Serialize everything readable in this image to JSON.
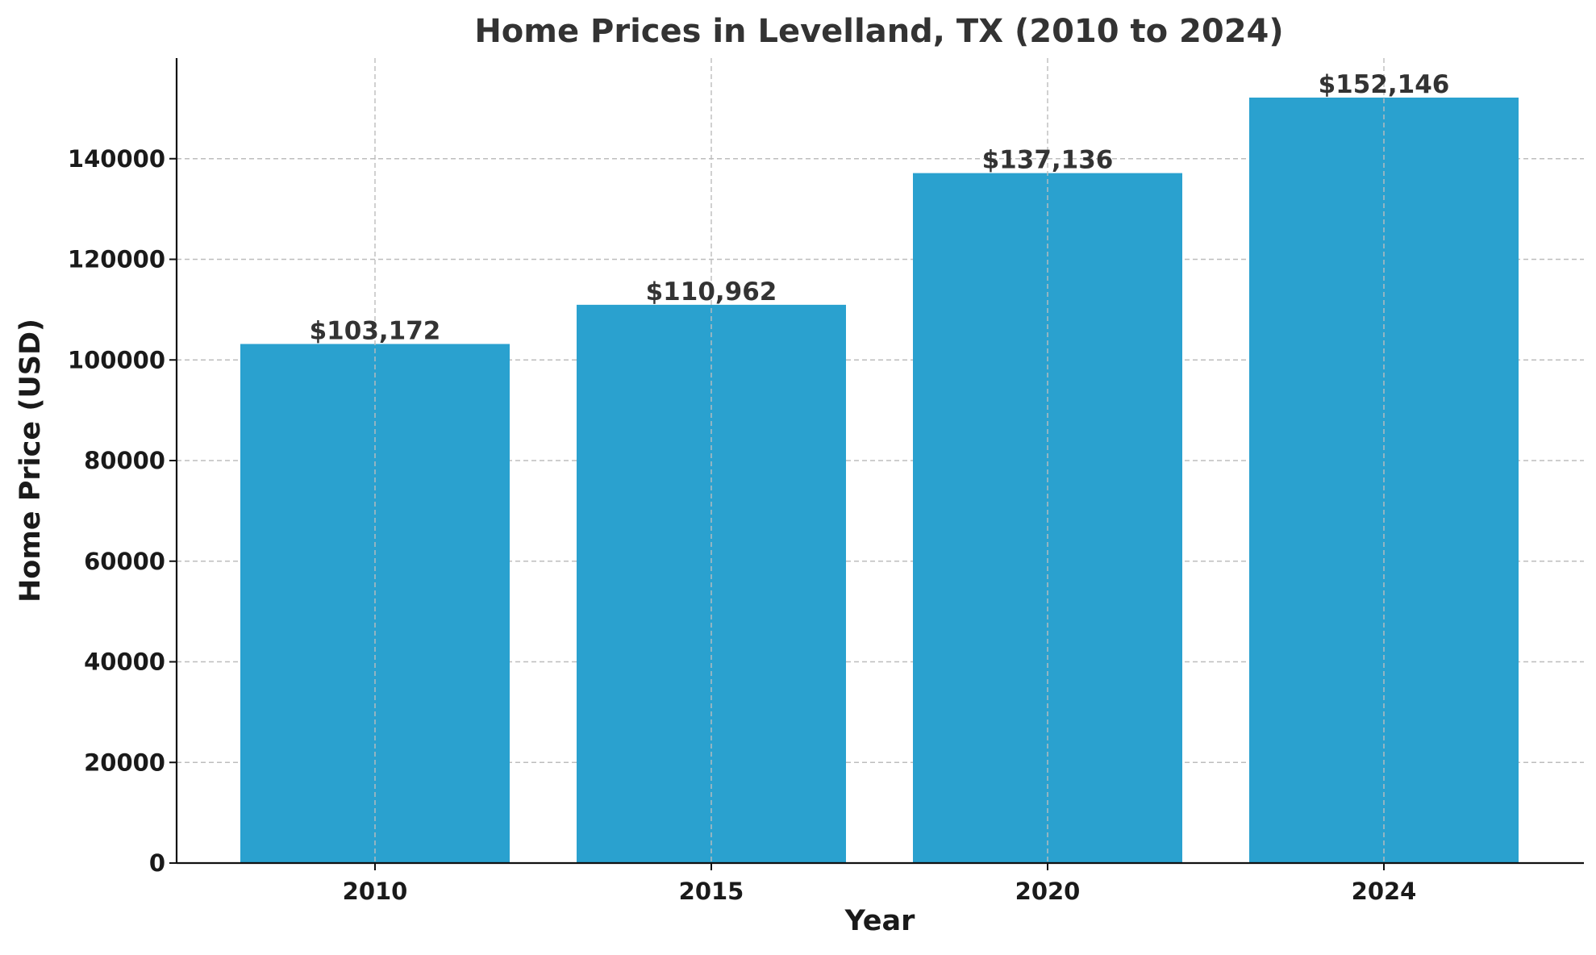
{
  "chart_data": {
    "type": "bar",
    "title": "Home Prices in Levelland, TX (2010 to 2024)",
    "xlabel": "Year",
    "ylabel": "Home Price (USD)",
    "categories": [
      "2010",
      "2015",
      "2020",
      "2024"
    ],
    "values": [
      103172,
      110962,
      137136,
      152146
    ],
    "value_labels": [
      "$103,172",
      "$110,962",
      "$137,136",
      "$152,146"
    ],
    "yticks": [
      0,
      20000,
      40000,
      60000,
      80000,
      100000,
      120000,
      140000
    ],
    "ytick_labels": [
      "0",
      "20000",
      "40000",
      "60000",
      "80000",
      "100000",
      "120000",
      "140000"
    ],
    "ylim": [
      0,
      160000
    ],
    "grid": true,
    "legend": "none",
    "bar_color": "#2aa1cf"
  }
}
